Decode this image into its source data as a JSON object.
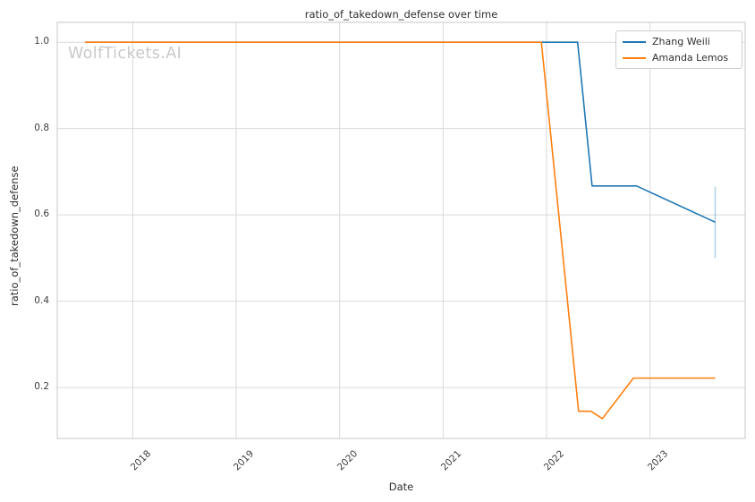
{
  "chart_data": {
    "type": "line",
    "title": "ratio_of_takedown_defense over time",
    "xlabel": "Date",
    "ylabel": "ratio_of_takedown_defense",
    "watermark": "WolfTickets.AI",
    "x_unit": "decimal_year",
    "grid": true,
    "legend_position": "upper right",
    "x_range": [
      2017.27,
      2023.92
    ],
    "y_range": [
      0.082,
      1.046
    ],
    "x_ticks": {
      "values": [
        2018,
        2019,
        2020,
        2021,
        2022,
        2023
      ],
      "labels": [
        "2018",
        "2019",
        "2020",
        "2021",
        "2022",
        "2023"
      ]
    },
    "y_ticks": {
      "values": [
        1.0,
        0.8,
        0.6,
        0.4,
        0.2
      ],
      "labels": [
        "1.0",
        "0.8",
        "0.6",
        "0.4",
        "0.2"
      ]
    },
    "series": [
      {
        "name": "Zhang Weili",
        "color": "#1f77b4",
        "points": [
          [
            2017.54,
            1.0
          ],
          [
            2022.3,
            1.0
          ],
          [
            2022.44,
            0.667
          ],
          [
            2022.87,
            0.667
          ],
          [
            2023.63,
            0.583
          ]
        ]
      },
      {
        "name": "Amanda Lemos",
        "color": "#ff7f0e",
        "points": [
          [
            2017.54,
            1.0
          ],
          [
            2021.95,
            1.0
          ],
          [
            2022.31,
            0.145
          ],
          [
            2022.43,
            0.145
          ],
          [
            2022.54,
            0.128
          ],
          [
            2022.84,
            0.222
          ],
          [
            2023.63,
            0.222
          ]
        ]
      }
    ],
    "error_bar": {
      "series": "Zhang Weili",
      "x": 2023.63,
      "y_low": 0.5,
      "y_high": 0.665,
      "color": "#1f77b4",
      "opacity": 0.35
    }
  },
  "colors": {
    "background": "#ffffff",
    "grid": "#d9d9d9",
    "spine": "#c7c7c7",
    "title_text": "#2f2f2f",
    "tick_text": "#3d3d3d",
    "watermark": "#c9c9c9"
  }
}
